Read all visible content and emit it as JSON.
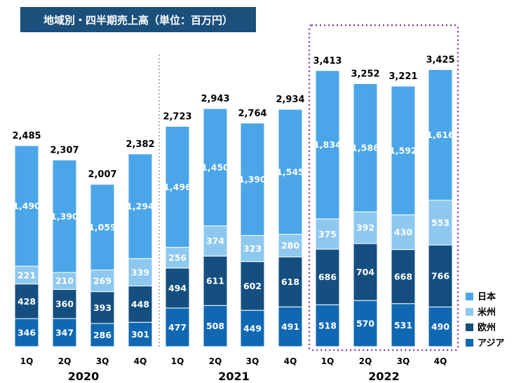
{
  "chart_data": {
    "type": "bar",
    "stacked": true,
    "title": "地域別・四半期売上高（単位：百万円）",
    "categories": [
      "1Q",
      "2Q",
      "3Q",
      "4Q",
      "1Q",
      "2Q",
      "3Q",
      "4Q",
      "1Q",
      "2Q",
      "3Q",
      "4Q"
    ],
    "year_groups": [
      {
        "label": "2020",
        "start": 0,
        "end": 3
      },
      {
        "label": "2021",
        "start": 4,
        "end": 7
      },
      {
        "label": "2022",
        "start": 8,
        "end": 11
      }
    ],
    "series": [
      {
        "name": "アジア",
        "color": "#1068b3",
        "text_color": "#ffffff",
        "values": [
          346,
          347,
          286,
          301,
          477,
          508,
          449,
          491,
          518,
          570,
          531,
          490
        ]
      },
      {
        "name": "欧州",
        "color": "#144f80",
        "text_color": "#ffffff",
        "values": [
          428,
          360,
          393,
          448,
          494,
          611,
          602,
          618,
          686,
          704,
          668,
          766
        ]
      },
      {
        "name": "米州",
        "color": "#8ec8ef",
        "text_color": "#ffffff",
        "values": [
          221,
          210,
          269,
          339,
          256,
          374,
          323,
          280,
          375,
          392,
          430,
          553
        ]
      },
      {
        "name": "日本",
        "color": "#4aa6e8",
        "text_color": "#ffffff",
        "values": [
          1490,
          1390,
          1059,
          1294,
          1496,
          1450,
          1390,
          1545,
          1834,
          1586,
          1592,
          1616
        ]
      }
    ],
    "totals": [
      "2,485",
      "2,307",
      "2,007",
      "2,382",
      "2,723",
      "2,943",
      "2,764",
      "2,934",
      "3,413",
      "3,252",
      "3,221",
      "3,425"
    ],
    "legend_order": [
      "日本",
      "米州",
      "欧州",
      "アジア"
    ],
    "legend_position": "bottom-right",
    "highlight_group": "2022",
    "highlight_color": "#7b3fa3",
    "separator_color": "#999999",
    "grid": false
  }
}
